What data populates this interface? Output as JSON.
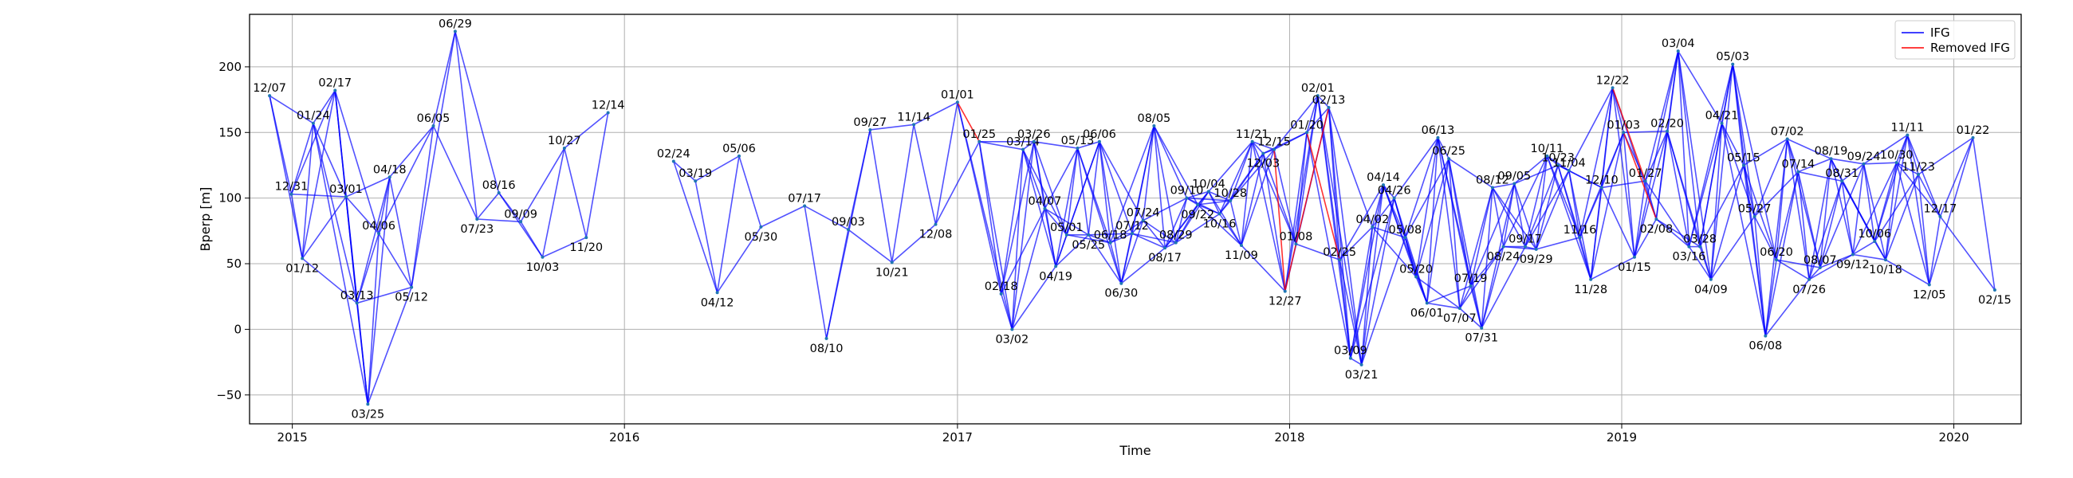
{
  "chart_data": {
    "type": "network",
    "xlabel": "Time",
    "ylabel": "Bperp [m]",
    "xlim": [
      "2014-11-15",
      "2020-03-15"
    ],
    "ylim": [
      -72,
      240
    ],
    "x_ticks": [
      "2015-01-01",
      "2016-01-01",
      "2017-01-01",
      "2018-01-01",
      "2019-01-01",
      "2020-01-01"
    ],
    "x_tick_labels": [
      "2015",
      "2016",
      "2017",
      "2018",
      "2019",
      "2020"
    ],
    "y_ticks": [
      -50,
      0,
      50,
      100,
      150,
      200
    ],
    "y_tick_labels": [
      "−50",
      "0",
      "50",
      "100",
      "150",
      "200"
    ],
    "grid": true,
    "legend": {
      "position": "top-right",
      "entries": [
        {
          "label": "IFG",
          "color": "#0000ff"
        },
        {
          "label": "Removed IFG",
          "color": "#ff0000"
        }
      ]
    },
    "colors": {
      "ifg": "#0000ff",
      "removed": "#ff0000"
    },
    "nodes": [
      {
        "label": "12/07",
        "date": "2014-12-07",
        "bperp": 178
      },
      {
        "label": "12/31",
        "date": "2014-12-31",
        "bperp": 103
      },
      {
        "label": "01/12",
        "date": "2015-01-12",
        "bperp": 54
      },
      {
        "label": "01/24",
        "date": "2015-01-24",
        "bperp": 157
      },
      {
        "label": "02/17",
        "date": "2015-02-17",
        "bperp": 182
      },
      {
        "label": "03/01",
        "date": "2015-03-01",
        "bperp": 101
      },
      {
        "label": "03/13",
        "date": "2015-03-13",
        "bperp": 20
      },
      {
        "label": "03/25",
        "date": "2015-03-25",
        "bperp": -57
      },
      {
        "label": "04/06",
        "date": "2015-04-06",
        "bperp": 73
      },
      {
        "label": "04/18",
        "date": "2015-04-18",
        "bperp": 116
      },
      {
        "label": "05/12",
        "date": "2015-05-12",
        "bperp": 32
      },
      {
        "label": "06/05",
        "date": "2015-06-05",
        "bperp": 155
      },
      {
        "label": "06/29",
        "date": "2015-06-29",
        "bperp": 227
      },
      {
        "label": "07/23",
        "date": "2015-07-23",
        "bperp": 84
      },
      {
        "label": "08/16",
        "date": "2015-08-16",
        "bperp": 104
      },
      {
        "label": "09/09",
        "date": "2015-09-09",
        "bperp": 82
      },
      {
        "label": "10/03",
        "date": "2015-10-03",
        "bperp": 55
      },
      {
        "label": "10/27",
        "date": "2015-10-27",
        "bperp": 138
      },
      {
        "label": "11/20",
        "date": "2015-11-20",
        "bperp": 70
      },
      {
        "label": "12/14",
        "date": "2015-12-14",
        "bperp": 165
      },
      {
        "label": "02/24",
        "date": "2016-02-24",
        "bperp": 128
      },
      {
        "label": "03/19",
        "date": "2016-03-19",
        "bperp": 113
      },
      {
        "label": "04/12",
        "date": "2016-04-12",
        "bperp": 28
      },
      {
        "label": "05/06",
        "date": "2016-05-06",
        "bperp": 132
      },
      {
        "label": "05/30",
        "date": "2016-05-30",
        "bperp": 78
      },
      {
        "label": "07/17",
        "date": "2016-07-17",
        "bperp": 94
      },
      {
        "label": "08/10",
        "date": "2016-08-10",
        "bperp": -7
      },
      {
        "label": "09/03",
        "date": "2016-09-03",
        "bperp": 76
      },
      {
        "label": "09/27",
        "date": "2016-09-27",
        "bperp": 152
      },
      {
        "label": "10/21",
        "date": "2016-10-21",
        "bperp": 51
      },
      {
        "label": "11/14",
        "date": "2016-11-14",
        "bperp": 156
      },
      {
        "label": "12/08",
        "date": "2016-12-08",
        "bperp": 80
      },
      {
        "label": "01/01",
        "date": "2017-01-01",
        "bperp": 173
      },
      {
        "label": "01/25",
        "date": "2017-01-25",
        "bperp": 143
      },
      {
        "label": "02/18",
        "date": "2017-02-18",
        "bperp": 27
      },
      {
        "label": "03/02",
        "date": "2017-03-02",
        "bperp": 0
      },
      {
        "label": "03/14",
        "date": "2017-03-14",
        "bperp": 137
      },
      {
        "label": "03/26",
        "date": "2017-03-26",
        "bperp": 143
      },
      {
        "label": "04/07",
        "date": "2017-04-07",
        "bperp": 92
      },
      {
        "label": "04/19",
        "date": "2017-04-19",
        "bperp": 48
      },
      {
        "label": "05/01",
        "date": "2017-05-01",
        "bperp": 72
      },
      {
        "label": "05/13",
        "date": "2017-05-13",
        "bperp": 138
      },
      {
        "label": "05/25",
        "date": "2017-05-25",
        "bperp": 72
      },
      {
        "label": "06/06",
        "date": "2017-06-06",
        "bperp": 143
      },
      {
        "label": "06/18",
        "date": "2017-06-18",
        "bperp": 66
      },
      {
        "label": "06/30",
        "date": "2017-06-30",
        "bperp": 35
      },
      {
        "label": "07/12",
        "date": "2017-07-12",
        "bperp": 73
      },
      {
        "label": "07/24",
        "date": "2017-07-24",
        "bperp": 83
      },
      {
        "label": "08/05",
        "date": "2017-08-05",
        "bperp": 155
      },
      {
        "label": "08/17",
        "date": "2017-08-17",
        "bperp": 62
      },
      {
        "label": "08/29",
        "date": "2017-08-29",
        "bperp": 66
      },
      {
        "label": "09/10",
        "date": "2017-09-10",
        "bperp": 100
      },
      {
        "label": "09/22",
        "date": "2017-09-22",
        "bperp": 95
      },
      {
        "label": "10/04",
        "date": "2017-10-04",
        "bperp": 105
      },
      {
        "label": "10/16",
        "date": "2017-10-16",
        "bperp": 88
      },
      {
        "label": "10/28",
        "date": "2017-10-28",
        "bperp": 98
      },
      {
        "label": "11/09",
        "date": "2017-11-09",
        "bperp": 64
      },
      {
        "label": "11/21",
        "date": "2017-11-21",
        "bperp": 143
      },
      {
        "label": "12/03",
        "date": "2017-12-03",
        "bperp": 134
      },
      {
        "label": "12/15",
        "date": "2017-12-15",
        "bperp": 137
      },
      {
        "label": "12/27",
        "date": "2017-12-27",
        "bperp": 29
      },
      {
        "label": "01/08",
        "date": "2018-01-08",
        "bperp": 65
      },
      {
        "label": "01/20",
        "date": "2018-01-20",
        "bperp": 150
      },
      {
        "label": "02/01",
        "date": "2018-02-01",
        "bperp": 178
      },
      {
        "label": "02/13",
        "date": "2018-02-13",
        "bperp": 169
      },
      {
        "label": "02/25",
        "date": "2018-02-25",
        "bperp": 53
      },
      {
        "label": "03/09",
        "date": "2018-03-09",
        "bperp": -22
      },
      {
        "label": "03/21",
        "date": "2018-03-21",
        "bperp": -27
      },
      {
        "label": "04/02",
        "date": "2018-04-02",
        "bperp": 78
      },
      {
        "label": "04/14",
        "date": "2018-04-14",
        "bperp": 110
      },
      {
        "label": "04/26",
        "date": "2018-04-26",
        "bperp": 100
      },
      {
        "label": "05/08",
        "date": "2018-05-08",
        "bperp": 70
      },
      {
        "label": "05/20",
        "date": "2018-05-20",
        "bperp": 40
      },
      {
        "label": "06/01",
        "date": "2018-06-01",
        "bperp": 20
      },
      {
        "label": "06/13",
        "date": "2018-06-13",
        "bperp": 146
      },
      {
        "label": "06/25",
        "date": "2018-06-25",
        "bperp": 130
      },
      {
        "label": "07/07",
        "date": "2018-07-07",
        "bperp": 16
      },
      {
        "label": "07/19",
        "date": "2018-07-19",
        "bperp": 33
      },
      {
        "label": "07/31",
        "date": "2018-07-31",
        "bperp": 1
      },
      {
        "label": "08/12",
        "date": "2018-08-12",
        "bperp": 108
      },
      {
        "label": "08/24",
        "date": "2018-08-24",
        "bperp": 63
      },
      {
        "label": "09/05",
        "date": "2018-09-05",
        "bperp": 111
      },
      {
        "label": "09/17",
        "date": "2018-09-17",
        "bperp": 63
      },
      {
        "label": "09/29",
        "date": "2018-09-29",
        "bperp": 61
      },
      {
        "label": "10/11",
        "date": "2018-10-11",
        "bperp": 132
      },
      {
        "label": "10/23",
        "date": "2018-10-23",
        "bperp": 125
      },
      {
        "label": "11/04",
        "date": "2018-11-04",
        "bperp": 121
      },
      {
        "label": "11/16",
        "date": "2018-11-16",
        "bperp": 70
      },
      {
        "label": "11/28",
        "date": "2018-11-28",
        "bperp": 38
      },
      {
        "label": "12/10",
        "date": "2018-12-10",
        "bperp": 108
      },
      {
        "label": "12/22",
        "date": "2018-12-22",
        "bperp": 184
      },
      {
        "label": "01/03",
        "date": "2019-01-03",
        "bperp": 150
      },
      {
        "label": "01/15",
        "date": "2019-01-15",
        "bperp": 55
      },
      {
        "label": "01/27",
        "date": "2019-01-27",
        "bperp": 113
      },
      {
        "label": "02/08",
        "date": "2019-02-08",
        "bperp": 84
      },
      {
        "label": "02/20",
        "date": "2019-02-20",
        "bperp": 151
      },
      {
        "label": "03/04",
        "date": "2019-03-04",
        "bperp": 212
      },
      {
        "label": "03/16",
        "date": "2019-03-16",
        "bperp": 63
      },
      {
        "label": "03/28",
        "date": "2019-03-28",
        "bperp": 63
      },
      {
        "label": "04/09",
        "date": "2019-04-09",
        "bperp": 38
      },
      {
        "label": "04/21",
        "date": "2019-04-21",
        "bperp": 157
      },
      {
        "label": "05/03",
        "date": "2019-05-03",
        "bperp": 202
      },
      {
        "label": "05/15",
        "date": "2019-05-15",
        "bperp": 125
      },
      {
        "label": "05/27",
        "date": "2019-05-27",
        "bperp": 86
      },
      {
        "label": "06/08",
        "date": "2019-06-08",
        "bperp": -5
      },
      {
        "label": "06/20",
        "date": "2019-06-20",
        "bperp": 53
      },
      {
        "label": "07/02",
        "date": "2019-07-02",
        "bperp": 145
      },
      {
        "label": "07/14",
        "date": "2019-07-14",
        "bperp": 120
      },
      {
        "label": "07/26",
        "date": "2019-07-26",
        "bperp": 38
      },
      {
        "label": "08/07",
        "date": "2019-08-07",
        "bperp": 47
      },
      {
        "label": "08/19",
        "date": "2019-08-19",
        "bperp": 130
      },
      {
        "label": "08/31",
        "date": "2019-08-31",
        "bperp": 113
      },
      {
        "label": "09/12",
        "date": "2019-09-12",
        "bperp": 57
      },
      {
        "label": "09/24",
        "date": "2019-09-24",
        "bperp": 126
      },
      {
        "label": "10/06",
        "date": "2019-10-06",
        "bperp": 67
      },
      {
        "label": "10/18",
        "date": "2019-10-18",
        "bperp": 53
      },
      {
        "label": "10/30",
        "date": "2019-10-30",
        "bperp": 127
      },
      {
        "label": "11/11",
        "date": "2019-11-11",
        "bperp": 148
      },
      {
        "label": "11/23",
        "date": "2019-11-23",
        "bperp": 118
      },
      {
        "label": "12/05",
        "date": "2019-12-05",
        "bperp": 34
      },
      {
        "label": "12/17",
        "date": "2019-12-17",
        "bperp": 86
      },
      {
        "label": "01/22",
        "date": "2020-01-22",
        "bperp": 146
      },
      {
        "label": "02/15",
        "date": "2020-02-15",
        "bperp": 30
      }
    ]
  }
}
